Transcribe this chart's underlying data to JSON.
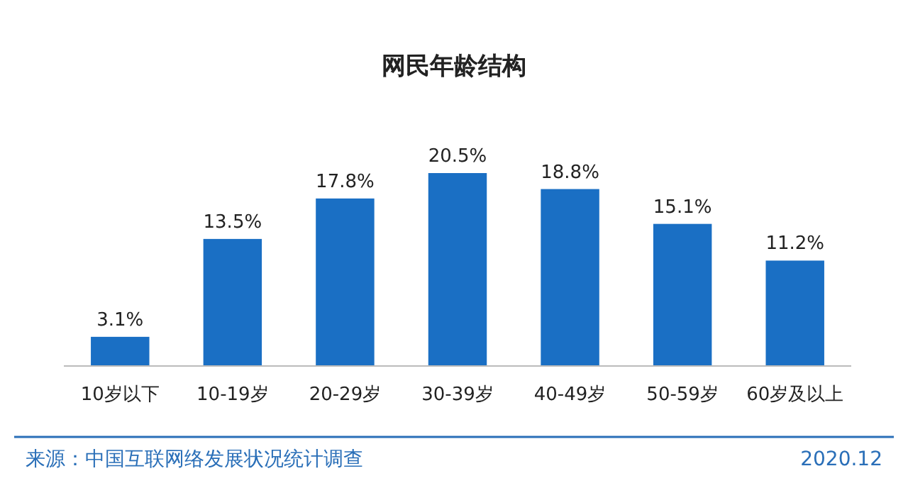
{
  "chart_data": {
    "type": "bar",
    "title": "网民年龄结构",
    "categories": [
      "10岁以下",
      "10-19岁",
      "20-29岁",
      "30-39岁",
      "40-49岁",
      "50-59岁",
      "60岁及以上"
    ],
    "values": [
      3.1,
      13.5,
      17.8,
      20.5,
      18.8,
      15.1,
      11.2
    ],
    "value_labels": [
      "3.1%",
      "13.5%",
      "17.8%",
      "20.5%",
      "18.8%",
      "15.1%",
      "11.2%"
    ],
    "color": "#1a6fc4",
    "annotations": [
      "来源：中国互联网络发展状况统计调查",
      "2020.12"
    ]
  }
}
